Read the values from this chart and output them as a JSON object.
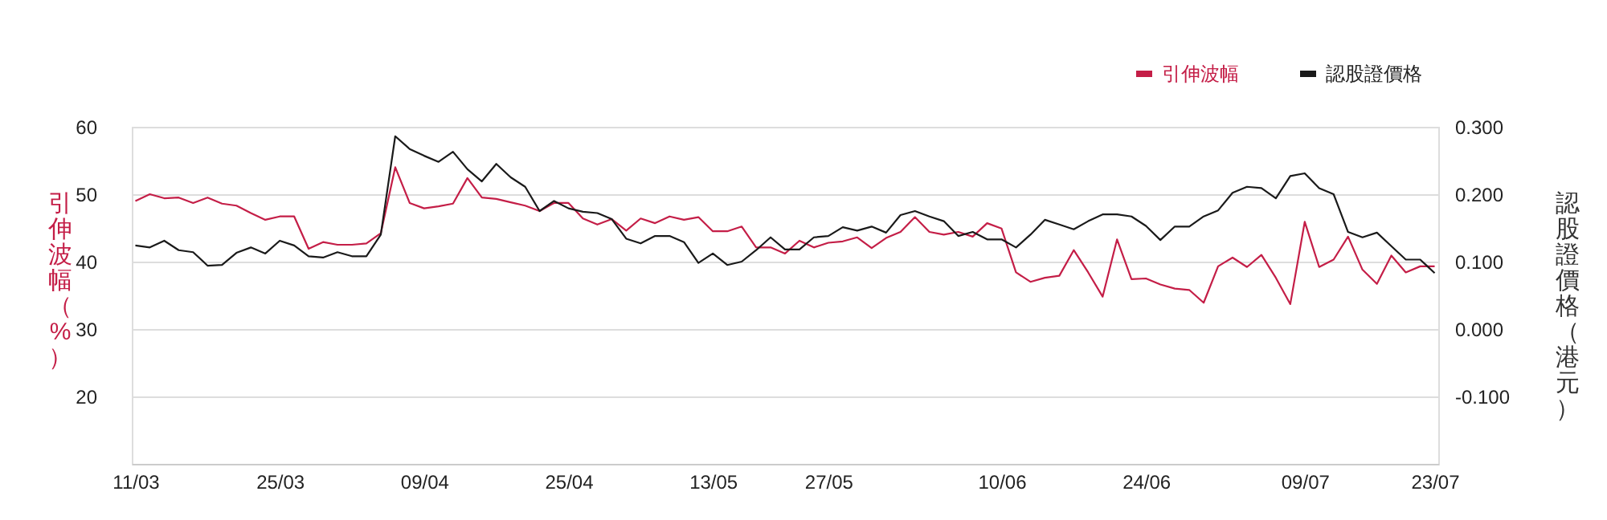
{
  "chart_data": {
    "type": "line",
    "ylabel": "引伸波幅（%）",
    "y2label": "認股證價格（港元）",
    "categories": [
      "11/03",
      null,
      null,
      null,
      null,
      null,
      null,
      null,
      null,
      null,
      "25/03",
      null,
      null,
      null,
      null,
      null,
      null,
      null,
      null,
      null,
      "09/04",
      null,
      null,
      null,
      null,
      null,
      null,
      null,
      null,
      null,
      "25/04",
      null,
      null,
      null,
      null,
      null,
      null,
      null,
      null,
      null,
      "13/05",
      null,
      null,
      null,
      null,
      null,
      null,
      null,
      "27/05",
      null,
      null,
      null,
      null,
      null,
      null,
      null,
      null,
      null,
      null,
      null,
      "10/06",
      null,
      null,
      null,
      null,
      null,
      null,
      null,
      null,
      null,
      "24/06",
      null,
      null,
      null,
      null,
      null,
      null,
      null,
      null,
      null,
      null,
      "09/07",
      null,
      null,
      null,
      null,
      null,
      null,
      null,
      null,
      "23/07"
    ],
    "series": [
      {
        "name": "引伸波幅",
        "color": "#c41e47",
        "values": [
          49.0,
          50.0,
          49.4,
          49.5,
          48.7,
          49.5,
          48.6,
          48.3,
          47.2,
          46.2,
          46.7,
          46.7,
          41.9,
          42.9,
          42.5,
          42.5,
          42.7,
          44.2,
          54.0,
          48.7,
          47.9,
          48.2,
          48.6,
          52.4,
          49.5,
          49.3,
          48.8,
          48.3,
          47.5,
          48.7,
          48.7,
          46.4,
          45.5,
          46.3,
          44.6,
          46.4,
          45.7,
          46.7,
          46.2,
          46.6,
          44.5,
          44.5,
          45.2,
          42.1,
          42.1,
          41.2,
          43.1,
          42.1,
          42.8,
          43.0,
          43.6,
          42.0,
          43.5,
          44.4,
          46.6,
          44.4,
          44.0,
          44.4,
          43.7,
          45.7,
          44.9,
          38.4,
          37.0,
          37.6,
          37.9,
          41.7,
          38.4,
          34.8,
          43.3,
          37.4,
          37.5,
          36.6,
          36.0,
          35.8,
          33.9,
          39.3,
          40.6,
          39.2,
          41.0,
          37.6,
          33.7,
          45.9,
          39.2,
          40.3,
          43.7,
          38.8,
          36.7,
          40.9,
          38.4,
          39.3,
          39.3
        ]
      },
      {
        "name": "認股證價格",
        "color": "#1a1a1a",
        "axis": "y2",
        "values": [
          0.124,
          0.121,
          0.131,
          0.117,
          0.114,
          0.094,
          0.095,
          0.113,
          0.121,
          0.112,
          0.131,
          0.124,
          0.108,
          0.106,
          0.114,
          0.108,
          0.108,
          0.14,
          0.286,
          0.267,
          0.257,
          0.248,
          0.263,
          0.237,
          0.219,
          0.245,
          0.225,
          0.211,
          0.175,
          0.19,
          0.179,
          0.174,
          0.172,
          0.163,
          0.134,
          0.127,
          0.138,
          0.138,
          0.129,
          0.098,
          0.112,
          0.095,
          0.1,
          0.117,
          0.136,
          0.118,
          0.118,
          0.136,
          0.138,
          0.151,
          0.146,
          0.152,
          0.143,
          0.169,
          0.175,
          0.167,
          0.16,
          0.138,
          0.144,
          0.133,
          0.133,
          0.121,
          0.14,
          0.162,
          0.155,
          0.148,
          0.16,
          0.17,
          0.17,
          0.167,
          0.153,
          0.132,
          0.152,
          0.152,
          0.167,
          0.176,
          0.202,
          0.211,
          0.209,
          0.194,
          0.227,
          0.231,
          0.209,
          0.2,
          0.144,
          0.136,
          0.143,
          0.123,
          0.103,
          0.103,
          0.083
        ]
      }
    ],
    "ylim": [
      10,
      60
    ],
    "yticks": [
      20,
      30,
      40,
      50,
      60
    ],
    "y2lim": [
      -0.2,
      0.3
    ],
    "y2ticks": [
      {
        "value": -0.1,
        "label": "-0.100"
      },
      {
        "value": 0,
        "label": "0.000"
      },
      {
        "value": 0.1,
        "label": "0.100"
      },
      {
        "value": 0.2,
        "label": "0.200"
      },
      {
        "value": 0.3,
        "label": "0.300"
      }
    ],
    "grid": "y",
    "legend": "top right"
  }
}
